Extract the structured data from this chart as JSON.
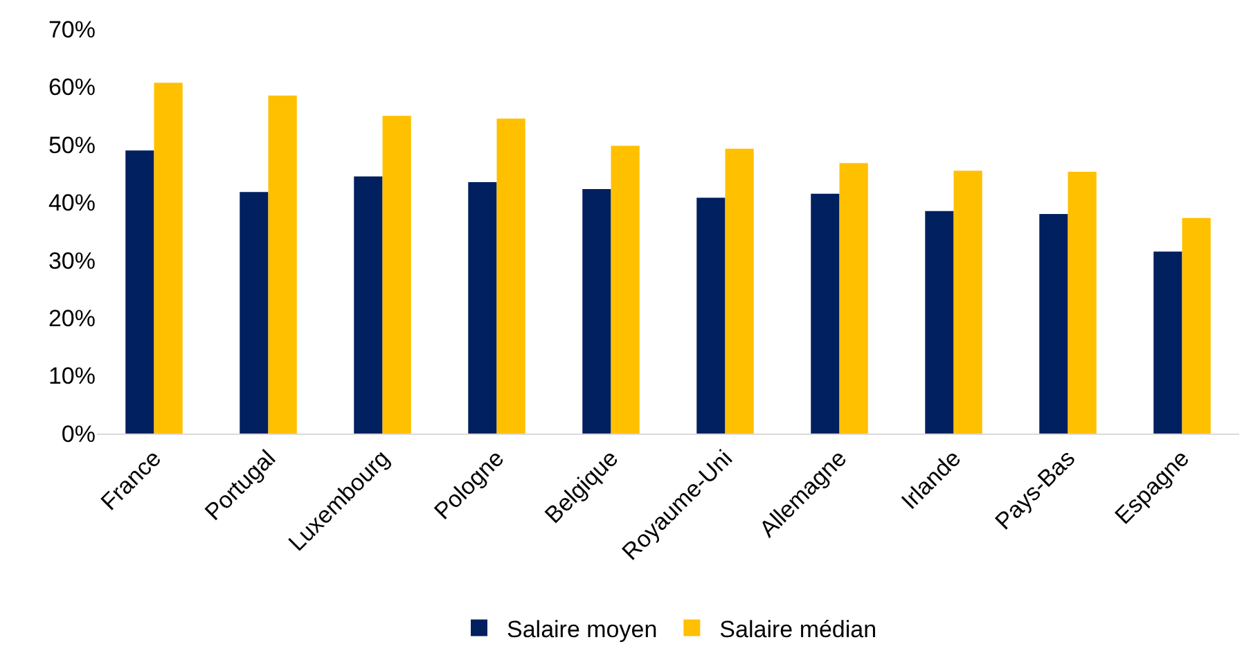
{
  "chart_data": {
    "type": "bar",
    "categories": [
      "France",
      "Portugal",
      "Luxembourg",
      "Pologne",
      "Belgique",
      "Royaume-Uni",
      "Allemagne",
      "Irlande",
      "Pays-Bas",
      "Espagne"
    ],
    "series": [
      {
        "name": "Salaire moyen",
        "color": "#002060",
        "values": [
          49.0,
          41.8,
          44.5,
          43.5,
          42.3,
          40.8,
          41.5,
          38.5,
          38.0,
          31.5
        ]
      },
      {
        "name": "Salaire médian",
        "color": "#ffc000",
        "values": [
          60.7,
          58.5,
          55.0,
          54.5,
          49.8,
          49.3,
          46.8,
          45.5,
          45.3,
          37.3
        ]
      }
    ],
    "ylim": [
      0,
      70
    ],
    "yticks": [
      {
        "value": 0,
        "label": "0%"
      },
      {
        "value": 10,
        "label": "10%"
      },
      {
        "value": 20,
        "label": "20%"
      },
      {
        "value": 30,
        "label": "30%"
      },
      {
        "value": 40,
        "label": "40%"
      },
      {
        "value": 50,
        "label": "50%"
      },
      {
        "value": 60,
        "label": "60%"
      },
      {
        "value": 70,
        "label": "70%"
      }
    ],
    "legend": "bottom"
  }
}
